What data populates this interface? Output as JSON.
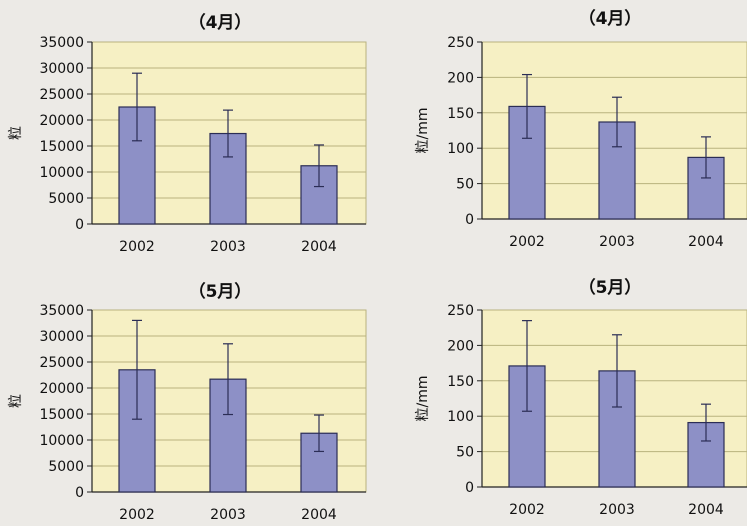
{
  "colors": {
    "page": "#eceae6",
    "plot_area": "#f6f0c4",
    "grid": "#b9b27e",
    "bar_fill": "#8d90c6",
    "bar_stroke": "#2b2d55",
    "axis": "#222222",
    "text": "#111111"
  },
  "chart_data": [
    {
      "type": "bar",
      "title": "（4月）",
      "ylabel": "粒",
      "categories": [
        "2002",
        "2003",
        "2004"
      ],
      "values": [
        22500,
        17400,
        11200
      ],
      "errors": [
        6500,
        4500,
        4000
      ],
      "ylim": [
        0,
        35000
      ],
      "yticks": [
        0,
        5000,
        10000,
        15000,
        20000,
        25000,
        30000,
        35000
      ],
      "grid": true
    },
    {
      "type": "bar",
      "title": "（4月）",
      "ylabel": "粒/mm",
      "categories": [
        "2002",
        "2003",
        "2004"
      ],
      "values": [
        159,
        137,
        87
      ],
      "errors": [
        45,
        35,
        29
      ],
      "ylim": [
        0,
        250
      ],
      "yticks": [
        0,
        50,
        100,
        150,
        200,
        250
      ],
      "grid": true
    },
    {
      "type": "bar",
      "title": "（5月）",
      "ylabel": "粒",
      "categories": [
        "2002",
        "2003",
        "2004"
      ],
      "values": [
        23500,
        21700,
        11300
      ],
      "errors": [
        9500,
        6800,
        3500
      ],
      "ylim": [
        0,
        35000
      ],
      "yticks": [
        0,
        5000,
        10000,
        15000,
        20000,
        25000,
        30000,
        35000
      ],
      "grid": true
    },
    {
      "type": "bar",
      "title": "（5月）",
      "ylabel": "粒/mm",
      "categories": [
        "2002",
        "2003",
        "2004"
      ],
      "values": [
        171,
        164,
        91
      ],
      "errors": [
        64,
        51,
        26
      ],
      "ylim": [
        0,
        250
      ],
      "yticks": [
        0,
        50,
        100,
        150,
        200,
        250
      ],
      "grid": true
    }
  ]
}
